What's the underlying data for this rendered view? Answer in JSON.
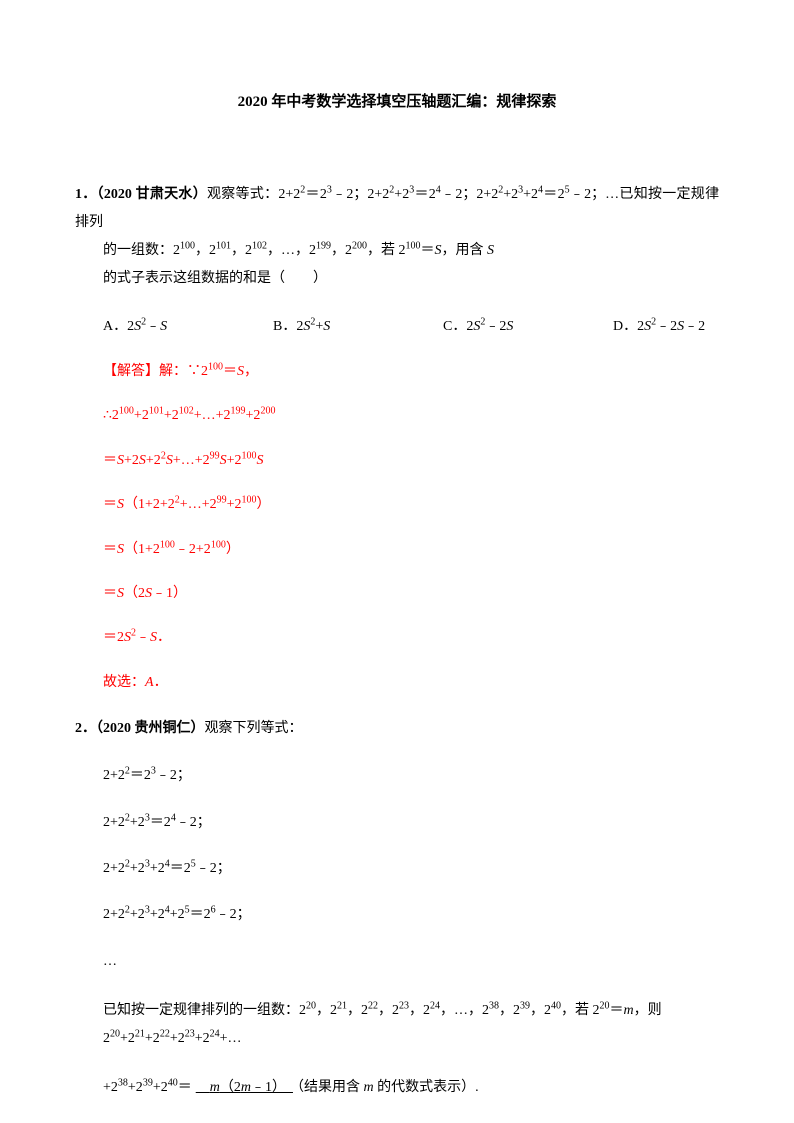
{
  "title": "2020 年中考数学选择填空压轴题汇编：规律探索",
  "q1": {
    "number": "1．",
    "source": "（2020 甘肃天水）",
    "stem_part1": "观察等式：2+2",
    "line2_prefix": "的一组数：2",
    "line2_mid": "，若 2",
    "line2_end": "，用含 ",
    "line2_tail": " 的式子表示这组数据的和是（　　）",
    "options": {
      "a_label": "A．",
      "b_label": "B．",
      "c_label": "C．",
      "d_label": "D．"
    },
    "solution": {
      "l1_prefix": "【解答】解：∵2",
      "l1_suffix": "＝",
      "l2_prefix": "∴2",
      "l3_prefix": "＝",
      "l4_prefix": "＝",
      "l4_mid": "（1+2+2",
      "l5_prefix": "＝",
      "l5_mid": "（1+2",
      "l6_prefix": "＝",
      "l6_mid": "（2",
      "l7_prefix": "＝2",
      "answer": "故选：",
      "answer_letter": "A"
    }
  },
  "q2": {
    "number": "2．",
    "source": "（2020 贵州铜仁）",
    "header_tail": "观察下列等式：",
    "lines": {
      "l1": "2+2",
      "ellipsis": "…",
      "final_prefix": "已知按一定规律排列的一组数：2",
      "final_mid": "，若 2",
      "final_eq": "＝",
      "final_then": "，则 2",
      "last_prefix": "+2",
      "last_eq": "＝",
      "answer": "m（2m﹣1）",
      "result_note": "（结果用含 ",
      "result_tail": " 的代数式表示）."
    }
  },
  "vars": {
    "S": "S",
    "m": "m"
  },
  "colors": {
    "text": "#000000",
    "solution": "#ff0000",
    "background": "#ffffff"
  },
  "typography": {
    "body_fontsize": 14,
    "title_fontsize": 15,
    "sup_fontsize": 10,
    "font_family": "SimSun"
  }
}
